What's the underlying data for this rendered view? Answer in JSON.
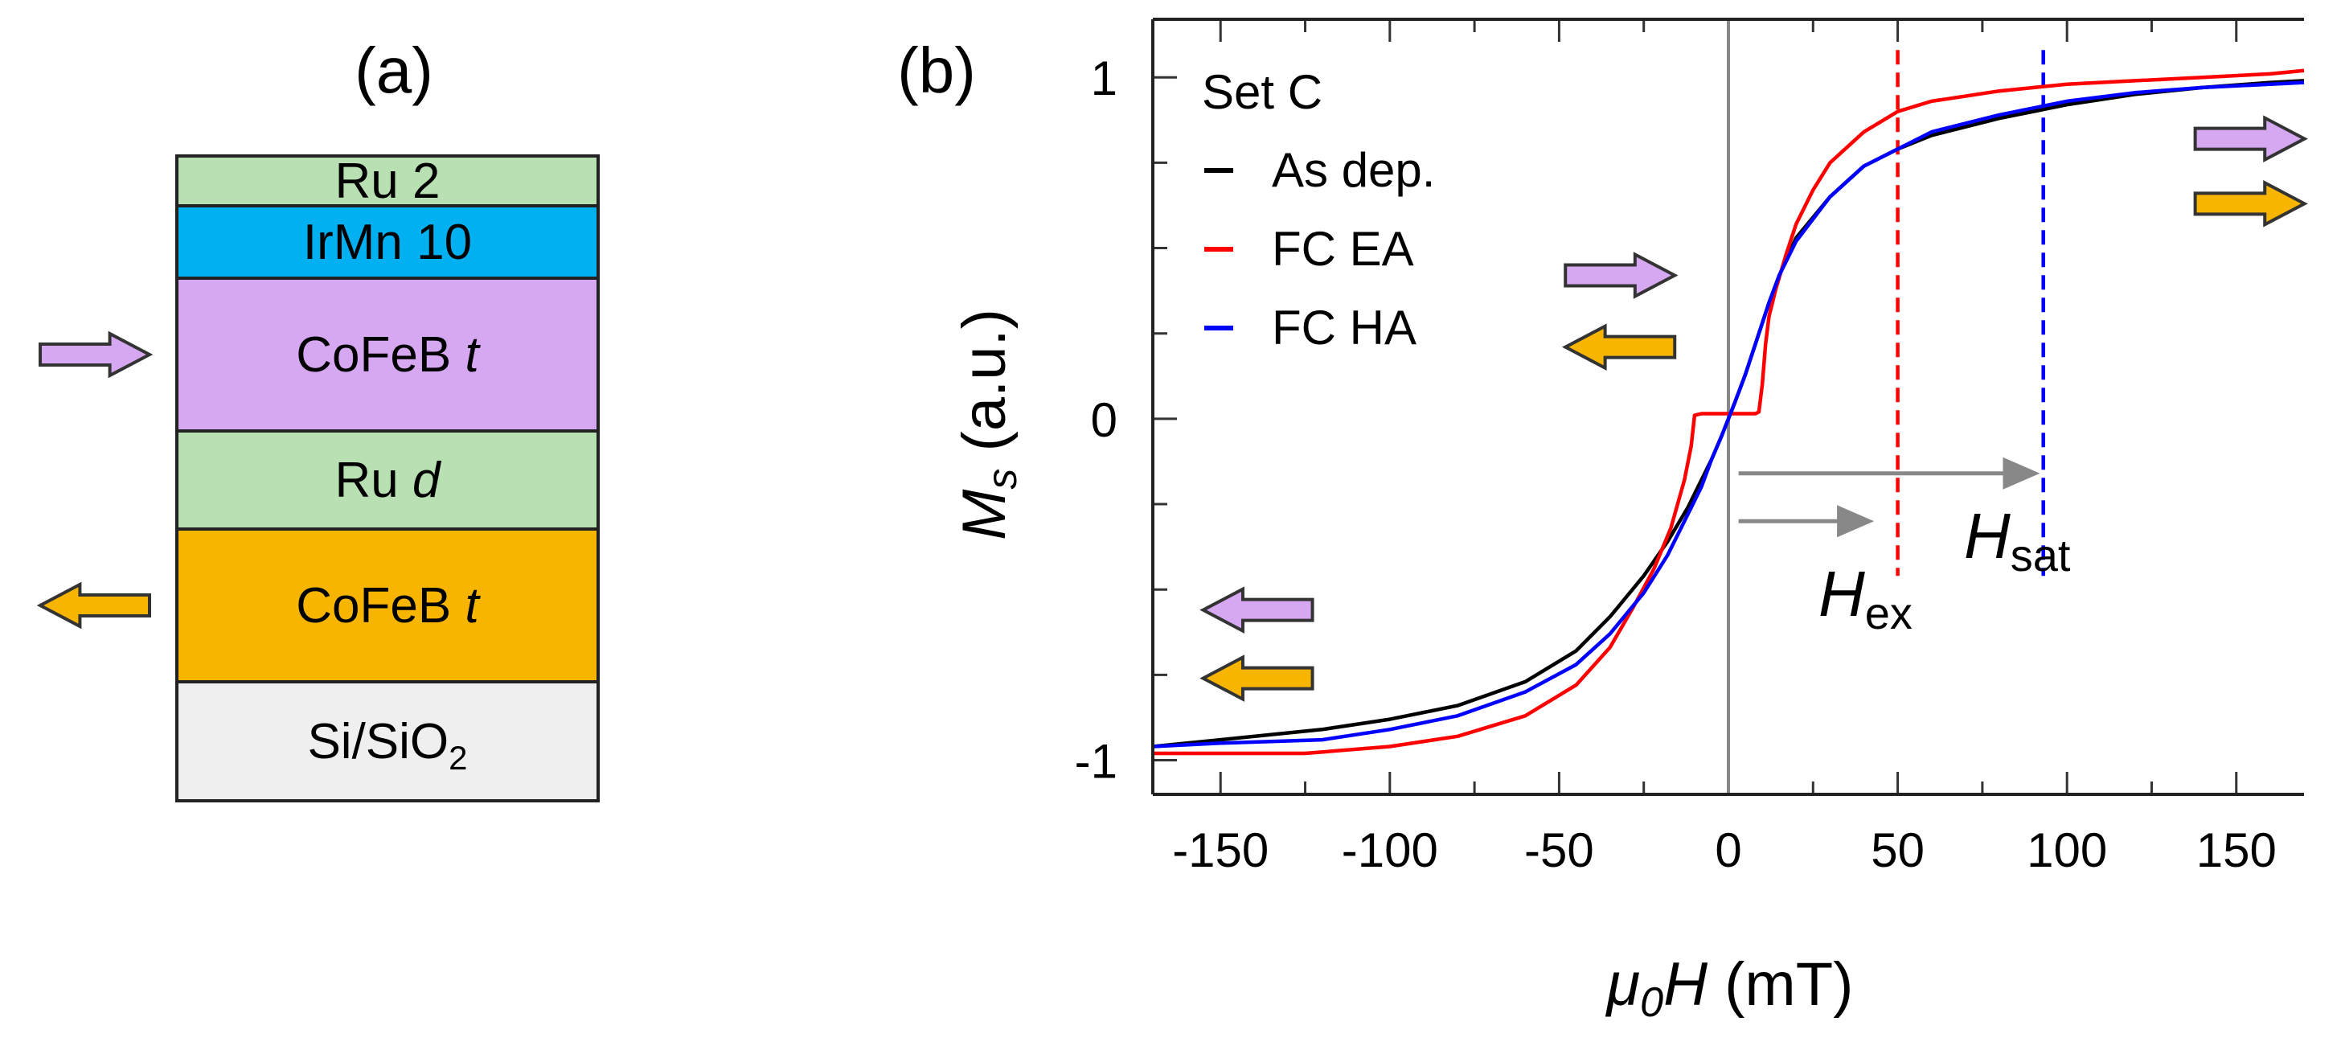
{
  "panel_a": {
    "label": "(a)",
    "layers": [
      {
        "name": "layer-ru-cap",
        "label": "Ru 2",
        "color": "#b9e0b3"
      },
      {
        "name": "layer-irmn",
        "label": "IrMn 10",
        "color": "#00b0f0"
      },
      {
        "name": "layer-cofeb-top",
        "label": "CoFeB",
        "suffix": "t",
        "color": "#d7a8f2"
      },
      {
        "name": "layer-ru-spacer",
        "label": "Ru",
        "suffix": "d",
        "color": "#b9e0b3"
      },
      {
        "name": "layer-cofeb-bottom",
        "label": "CoFeB",
        "suffix": "t",
        "color": "#f7b500"
      },
      {
        "name": "layer-substrate",
        "label": "Si/SiO",
        "subscript": "2",
        "color": "#efefef"
      }
    ],
    "moment_arrows": [
      {
        "layer": "layer-cofeb-top",
        "direction": "right",
        "color": "#d7a8f2"
      },
      {
        "layer": "layer-cofeb-bottom",
        "direction": "left",
        "color": "#f7b500"
      }
    ]
  },
  "panel_b_label": "(b)",
  "chart_data": {
    "type": "line",
    "title": "",
    "xlabel": {
      "mu": "μ",
      "mu_sub": "0",
      "var": "H",
      "unit": "(mT)"
    },
    "ylabel": {
      "var": "M",
      "var_sub": "s",
      "unit": "(a.u.)"
    },
    "xlim": [
      -170,
      170
    ],
    "ylim": [
      -1.1,
      1.17
    ],
    "xticks": [
      -150,
      -100,
      -50,
      0,
      50,
      100,
      150
    ],
    "xtick_labels": [
      "-150",
      "-100",
      "-50",
      "0",
      "50",
      "100",
      "150"
    ],
    "yticks": [
      -1,
      0,
      1
    ],
    "ytick_labels": [
      "-1",
      "0",
      "1"
    ],
    "x_minor_step": 25,
    "y_minor_step": 0.25,
    "legend_title": "Set C",
    "series": [
      {
        "name": "As dep.",
        "color": "#000000",
        "x": [
          -170,
          -150,
          -120,
          -100,
          -80,
          -60,
          -45,
          -35,
          -25,
          -18,
          -12,
          -8,
          -5,
          -2,
          0,
          2,
          5,
          8,
          12,
          15,
          20,
          30,
          40,
          50,
          60,
          80,
          100,
          120,
          140,
          160,
          170
        ],
        "y": [
          -0.96,
          -0.94,
          -0.91,
          -0.88,
          -0.84,
          -0.77,
          -0.68,
          -0.58,
          -0.46,
          -0.36,
          -0.26,
          -0.18,
          -0.12,
          -0.05,
          0.0,
          0.05,
          0.13,
          0.22,
          0.34,
          0.42,
          0.53,
          0.65,
          0.74,
          0.79,
          0.83,
          0.88,
          0.92,
          0.95,
          0.97,
          0.985,
          0.99
        ]
      },
      {
        "name": "FC EA",
        "color": "#ff0000",
        "x": [
          -170,
          -150,
          -125,
          -100,
          -80,
          -60,
          -45,
          -35,
          -28,
          -22,
          -17,
          -13,
          -11,
          -10,
          -8,
          -5,
          0,
          5,
          8,
          9,
          10,
          11,
          12,
          14,
          17,
          20,
          25,
          30,
          40,
          50,
          60,
          80,
          100,
          120,
          140,
          160,
          170
        ],
        "y": [
          -0.98,
          -0.98,
          -0.98,
          -0.96,
          -0.93,
          -0.87,
          -0.78,
          -0.67,
          -0.55,
          -0.44,
          -0.32,
          -0.18,
          -0.08,
          0.01,
          0.015,
          0.015,
          0.015,
          0.015,
          0.015,
          0.02,
          0.1,
          0.22,
          0.3,
          0.38,
          0.48,
          0.57,
          0.67,
          0.75,
          0.84,
          0.9,
          0.93,
          0.96,
          0.98,
          0.99,
          1.0,
          1.01,
          1.02
        ]
      },
      {
        "name": "FC HA",
        "color": "#0000ff",
        "x": [
          -170,
          -150,
          -120,
          -100,
          -80,
          -60,
          -45,
          -35,
          -25,
          -18,
          -12,
          -8,
          -5,
          -2,
          0,
          2,
          5,
          8,
          12,
          15,
          20,
          30,
          40,
          50,
          60,
          80,
          100,
          120,
          140,
          160,
          170
        ],
        "y": [
          -0.96,
          -0.95,
          -0.94,
          -0.91,
          -0.87,
          -0.8,
          -0.72,
          -0.63,
          -0.51,
          -0.4,
          -0.28,
          -0.2,
          -0.12,
          -0.05,
          0.0,
          0.05,
          0.13,
          0.22,
          0.34,
          0.42,
          0.52,
          0.65,
          0.74,
          0.79,
          0.84,
          0.89,
          0.93,
          0.955,
          0.97,
          0.98,
          0.985
        ]
      }
    ],
    "reference_lines": [
      {
        "name": "h-ex-line",
        "x": 50,
        "color": "#ff0000",
        "style": "dashed"
      },
      {
        "name": "h-sat-line",
        "x": 93,
        "color": "#0000ff",
        "style": "dashed"
      }
    ],
    "annotations": {
      "h_ex": {
        "var": "H",
        "sub": "ex",
        "x_from": 3,
        "x_to": 43,
        "y": -0.3
      },
      "h_sat": {
        "var": "H",
        "sub": "sat",
        "x_from": 3,
        "x_to": 92,
        "y": -0.16
      }
    },
    "state_arrows": [
      {
        "name": "state-low-top-arrow",
        "x": -139,
        "y": -0.56,
        "direction": "left",
        "color": "#d7a8f2"
      },
      {
        "name": "state-low-bottom-arrow",
        "x": -139,
        "y": -0.76,
        "direction": "left",
        "color": "#f7b500"
      },
      {
        "name": "state-mid-top-arrow",
        "x": -32,
        "y": 0.42,
        "direction": "right",
        "color": "#d7a8f2"
      },
      {
        "name": "state-mid-bottom-arrow",
        "x": -32,
        "y": 0.21,
        "direction": "left",
        "color": "#f7b500"
      },
      {
        "name": "state-high-top-arrow",
        "x": 154,
        "y": 0.82,
        "direction": "right",
        "color": "#d7a8f2"
      },
      {
        "name": "state-high-bottom-arrow",
        "x": 154,
        "y": 0.63,
        "direction": "right",
        "color": "#f7b500"
      }
    ]
  }
}
